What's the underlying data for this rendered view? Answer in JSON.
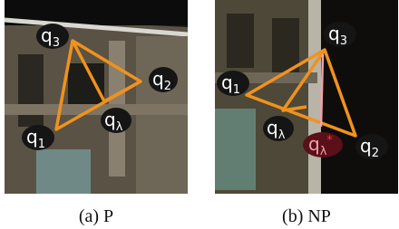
{
  "panels": [
    {
      "caption": "(a) P",
      "labels": [
        {
          "base": "q",
          "sub": "3"
        },
        {
          "base": "q",
          "sub": "2"
        },
        {
          "base": "q",
          "sub": "1"
        },
        {
          "base": "q",
          "sub": "λ"
        }
      ]
    },
    {
      "caption": "(b) NP",
      "labels": [
        {
          "base": "q",
          "sub": "3"
        },
        {
          "base": "q",
          "sub": "1"
        },
        {
          "base": "q",
          "sub": "λ"
        },
        {
          "base": "q",
          "sub": "λ",
          "sup": "*"
        },
        {
          "base": "q",
          "sub": "2"
        }
      ]
    }
  ]
}
